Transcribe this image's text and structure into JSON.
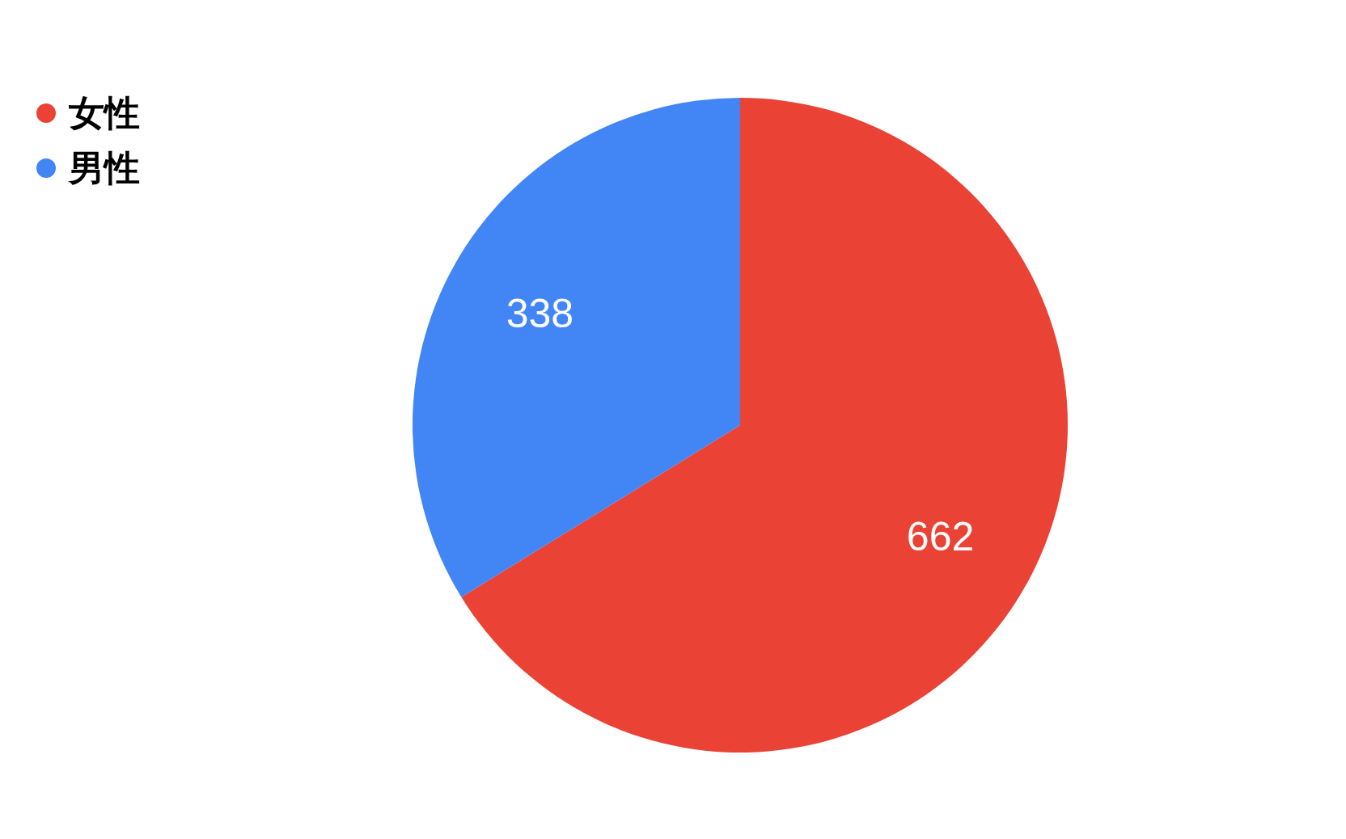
{
  "chart_data": {
    "type": "pie",
    "categories": [
      "女性",
      "男性"
    ],
    "values": [
      662,
      338
    ],
    "colors": [
      "#ea4335",
      "#4285f4"
    ],
    "data_labels": true,
    "legend": "top left"
  }
}
